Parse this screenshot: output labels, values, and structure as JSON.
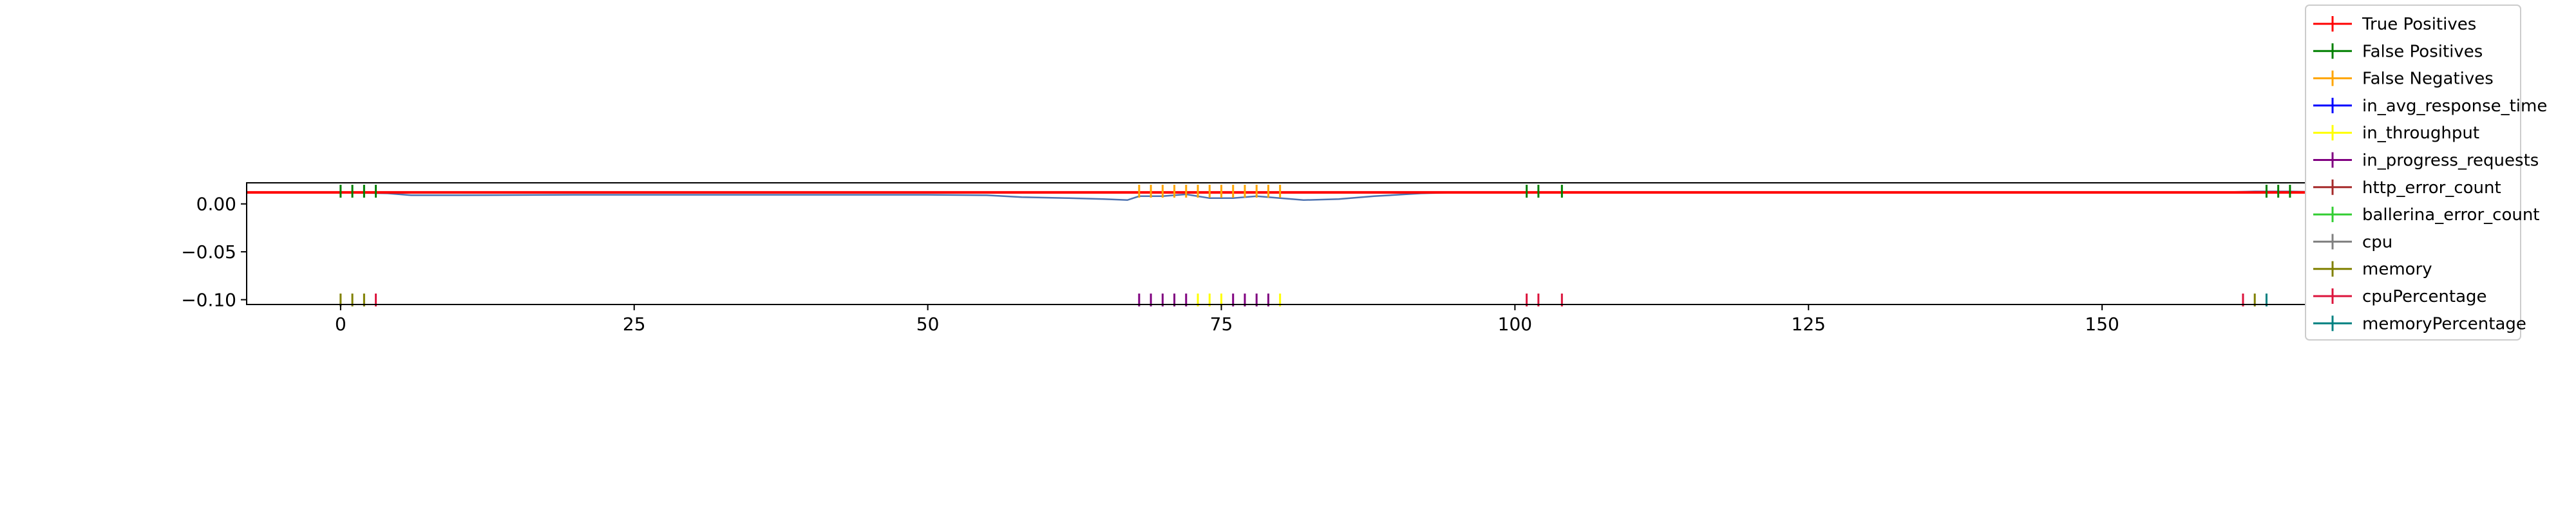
{
  "chart_data": {
    "type": "line",
    "title": "",
    "xlabel": "",
    "ylabel": "",
    "xlim": [
      -8,
      175
    ],
    "ylim": [
      -0.105,
      0.022
    ],
    "x_ticks": [
      0,
      25,
      50,
      75,
      100,
      125,
      150
    ],
    "x_tick_labels": [
      "0",
      "25",
      "50",
      "75",
      "100",
      "125",
      "150"
    ],
    "y_ticks": [
      0.0,
      -0.05,
      -0.1
    ],
    "y_tick_labels": [
      "0.00",
      "−0.05",
      "−0.10"
    ],
    "grid": false,
    "legend_position": "top-right",
    "threshold": {
      "name": "",
      "value": 0.012,
      "color": "#ff0000"
    },
    "signal": {
      "color": "#4c72b0",
      "x": [
        -8,
        0,
        4,
        6,
        10,
        20,
        30,
        40,
        50,
        55,
        58,
        62,
        65,
        67,
        68,
        70,
        72,
        74,
        76,
        78,
        80,
        82,
        85,
        88,
        92,
        95,
        100,
        120,
        140,
        160,
        163,
        166,
        170,
        175
      ],
      "y": [
        0.012,
        0.012,
        0.011,
        0.009,
        0.009,
        0.0095,
        0.0095,
        0.0095,
        0.0095,
        0.009,
        0.007,
        0.006,
        0.005,
        0.004,
        0.008,
        0.008,
        0.01,
        0.006,
        0.006,
        0.008,
        0.006,
        0.004,
        0.005,
        0.008,
        0.011,
        0.012,
        0.012,
        0.012,
        0.012,
        0.012,
        0.013,
        0.013,
        0.012,
        0.012
      ]
    },
    "series": [
      {
        "name": "True Positives",
        "color": "#ff0000",
        "row": "top",
        "x": []
      },
      {
        "name": "False Positives",
        "color": "#008000",
        "row": "top",
        "x": [
          0,
          1,
          2,
          3,
          101,
          102,
          104,
          164,
          165,
          166
        ]
      },
      {
        "name": "False Negatives",
        "color": "#ffa500",
        "row": "top",
        "x": [
          68,
          69,
          70,
          71,
          72,
          73,
          74,
          75,
          76,
          77,
          78,
          79,
          80
        ]
      },
      {
        "name": "in_avg_response_time",
        "color": "#0000ff",
        "row": "bottom",
        "x": []
      },
      {
        "name": "in_throughput",
        "color": "#ffff00",
        "row": "bottom",
        "x": [
          73,
          74,
          75,
          80
        ]
      },
      {
        "name": "in_progress_requests",
        "color": "#800080",
        "row": "bottom",
        "x": [
          68,
          69,
          70,
          71,
          72,
          76,
          77,
          78,
          79
        ]
      },
      {
        "name": "http_error_count",
        "color": "#a52a2a",
        "row": "bottom",
        "x": []
      },
      {
        "name": "ballerina_error_count",
        "color": "#32cd32",
        "row": "bottom",
        "x": []
      },
      {
        "name": "cpu",
        "color": "#808080",
        "row": "bottom",
        "x": []
      },
      {
        "name": "memory",
        "color": "#808000",
        "row": "bottom",
        "x": [
          0,
          1,
          2,
          163
        ]
      },
      {
        "name": "cpuPercentage",
        "color": "#dc143c",
        "row": "bottom",
        "x": [
          3,
          101,
          102,
          104,
          162
        ]
      },
      {
        "name": "memoryPercentage",
        "color": "#008080",
        "row": "bottom",
        "x": [
          164
        ]
      }
    ]
  }
}
